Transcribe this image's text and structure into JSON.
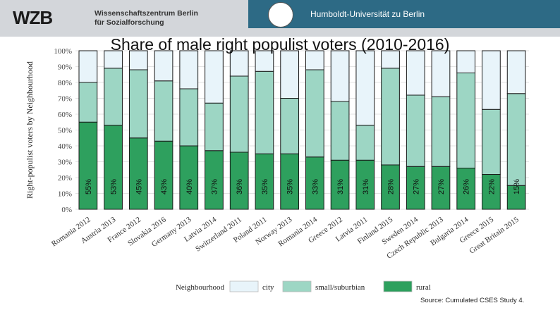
{
  "header": {
    "logo": "WZB",
    "org_line1": "Wissenschaftszentrum Berlin",
    "org_line2": "für Sozialforschung",
    "university": "Humboldt-Universität zu Berlin"
  },
  "source": "Source: Cumulated CSES Study 4.",
  "colors": {
    "city": "#e8f4fa",
    "suburban": "#9dd6c4",
    "rural": "#2ea05e",
    "header_blue": "#2d6a85"
  },
  "chart_data": {
    "type": "bar",
    "stacked": true,
    "title": "Share of male right populist voters (2010-2016)",
    "ylabel": "Right-populist voters by Neighbourhood",
    "ylim": [
      0,
      100
    ],
    "yticks": [
      "0%",
      "10%",
      "20%",
      "30%",
      "40%",
      "50%",
      "60%",
      "70%",
      "80%",
      "90%",
      "100%"
    ],
    "categories": [
      "Romania 2012",
      "Austria 2013",
      "France 2012",
      "Slovakia 2016",
      "Germany 2013",
      "Latvia 2014",
      "Switzerland 2011",
      "Poland 2011",
      "Norway 2013",
      "Romania 2014",
      "Greece 2012",
      "Latvia 2011",
      "Finland 2015",
      "Sweden 2014",
      "Czech Republic 2013",
      "Bulgaria 2014",
      "Greece 2015",
      "Great Britain 2015"
    ],
    "series": [
      {
        "name": "rural",
        "values": [
          55,
          53,
          45,
          43,
          40,
          37,
          36,
          35,
          35,
          33,
          31,
          31,
          28,
          27,
          27,
          26,
          22,
          15
        ]
      },
      {
        "name": "small/suburbian",
        "values": [
          25,
          36,
          43,
          38,
          36,
          30,
          48,
          52,
          35,
          55,
          37,
          22,
          61,
          45,
          44,
          60,
          41,
          58
        ]
      },
      {
        "name": "city",
        "values": [
          20,
          11,
          12,
          19,
          24,
          33,
          16,
          13,
          30,
          12,
          32,
          47,
          11,
          28,
          29,
          14,
          37,
          27
        ]
      }
    ],
    "data_labels": [
      "55%",
      "53%",
      "45%",
      "43%",
      "40%",
      "37%",
      "36%",
      "35%",
      "35%",
      "33%",
      "31%",
      "31%",
      "28%",
      "27%",
      "27%",
      "26%",
      "22%",
      "15%"
    ],
    "legend": {
      "title": "Neighbourhood",
      "entries": [
        "city",
        "small/suburbian",
        "rural"
      ],
      "position": "bottom"
    }
  }
}
